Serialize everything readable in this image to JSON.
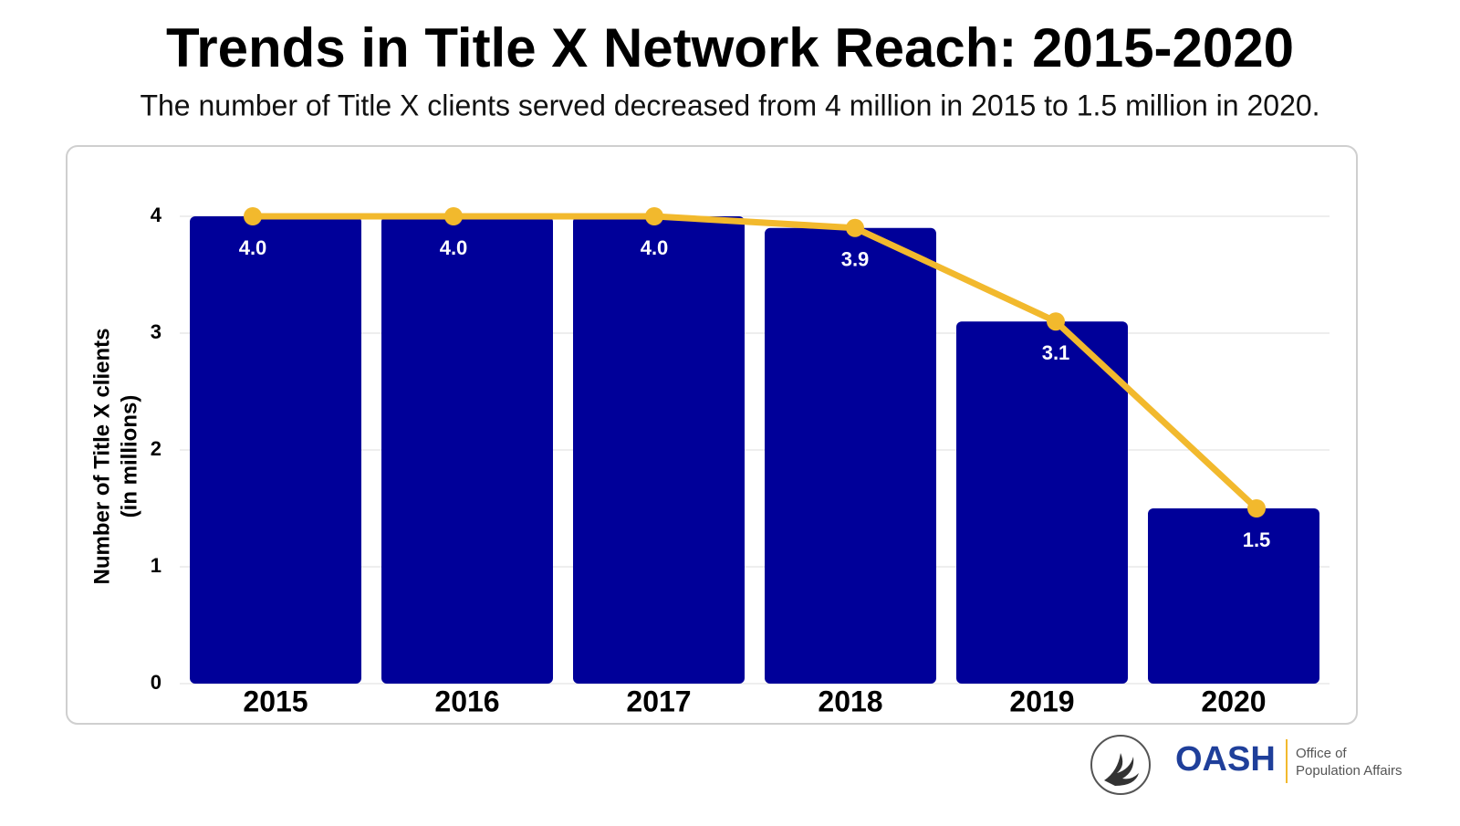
{
  "chart_data": {
    "type": "bar",
    "title": "Trends in Title X Network Reach: 2015-2020",
    "subtitle": "The number of Title X clients served decreased from 4 million in 2015 to 1.5 million in 2020.",
    "ylabel": [
      "Number of Title X clients",
      "(in millions)"
    ],
    "categories": [
      "2015",
      "2016",
      "2017",
      "2018",
      "2019",
      "2020"
    ],
    "values": [
      4.0,
      4.0,
      4.0,
      3.9,
      3.1,
      1.5
    ],
    "value_labels": [
      "4.0",
      "4.0",
      "4.0",
      "3.9",
      "3.1",
      "1.5"
    ],
    "color": "#000099",
    "line_overlay": true,
    "line_color": "#f2b92d",
    "ylim": [
      0,
      4
    ],
    "yticks": [
      0,
      1,
      2,
      3,
      4
    ],
    "grid": true
  },
  "footer": {
    "logo": "OASH",
    "office": [
      "Office of",
      "Population Affairs"
    ]
  }
}
